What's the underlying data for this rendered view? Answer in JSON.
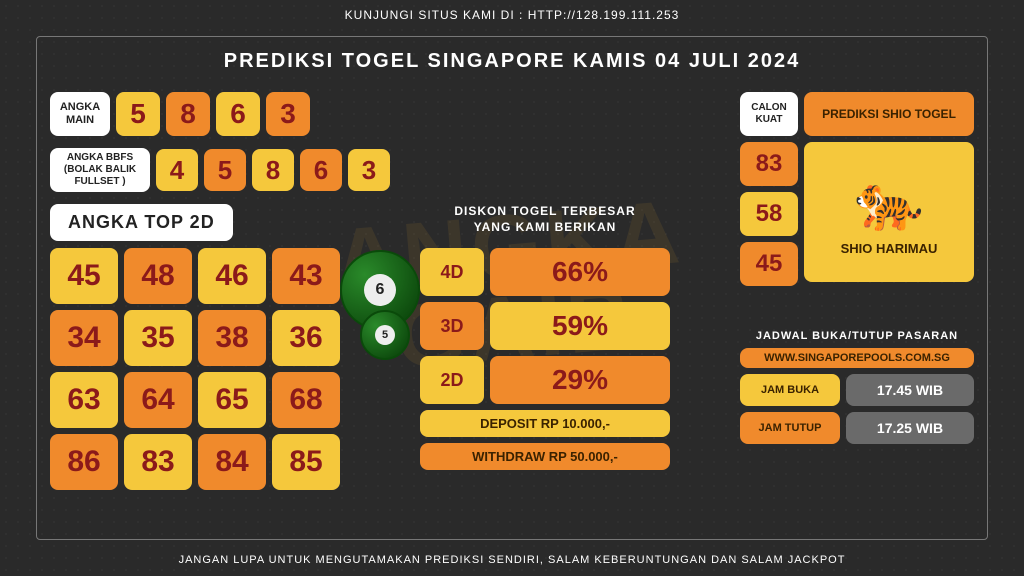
{
  "topbar": "KUNJUNGI SITUS KAMI DI : HTTP://128.199.111.253",
  "title": "PREDIKSI TOGEL SINGAPORE KAMIS 04 JULI 2024",
  "footer": "JANGAN LUPA UNTUK MENGUTAMAKAN PREDIKSI SENDIRI, SALAM KEBERUNTUNGAN DAN SALAM JACKPOT",
  "watermark": "ANGKA\nGAIB",
  "colors": {
    "yellow": "#f5c83c",
    "orange": "#f08a2c"
  },
  "angka_main": {
    "label": "ANGKA\nMAIN",
    "digits": [
      {
        "v": "5",
        "c": "yellow"
      },
      {
        "v": "8",
        "c": "orange"
      },
      {
        "v": "6",
        "c": "yellow"
      },
      {
        "v": "3",
        "c": "orange"
      }
    ]
  },
  "bbfs": {
    "label": "ANGKA BBFS\n(BOLAK BALIK\nFULLSET )",
    "digits": [
      {
        "v": "4",
        "c": "yellow"
      },
      {
        "v": "5",
        "c": "orange"
      },
      {
        "v": "8",
        "c": "yellow"
      },
      {
        "v": "6",
        "c": "orange"
      },
      {
        "v": "3",
        "c": "yellow"
      }
    ]
  },
  "top2d": {
    "label": "ANGKA TOP 2D",
    "cells": [
      {
        "v": "45",
        "c": "yellow"
      },
      {
        "v": "48",
        "c": "orange"
      },
      {
        "v": "46",
        "c": "yellow"
      },
      {
        "v": "43",
        "c": "orange"
      },
      {
        "v": "34",
        "c": "orange"
      },
      {
        "v": "35",
        "c": "yellow"
      },
      {
        "v": "38",
        "c": "orange"
      },
      {
        "v": "36",
        "c": "yellow"
      },
      {
        "v": "63",
        "c": "yellow"
      },
      {
        "v": "64",
        "c": "orange"
      },
      {
        "v": "65",
        "c": "yellow"
      },
      {
        "v": "68",
        "c": "orange"
      },
      {
        "v": "86",
        "c": "orange"
      },
      {
        "v": "83",
        "c": "yellow"
      },
      {
        "v": "84",
        "c": "orange"
      },
      {
        "v": "85",
        "c": "yellow"
      }
    ]
  },
  "diskon": {
    "label": "DISKON TOGEL TERBESAR\nYANG KAMI BERIKAN",
    "rows": [
      {
        "lab": "4D",
        "lab_c": "yellow",
        "val": "66%",
        "val_c": "orange"
      },
      {
        "lab": "3D",
        "lab_c": "orange",
        "val": "59%",
        "val_c": "yellow"
      },
      {
        "lab": "2D",
        "lab_c": "yellow",
        "val": "29%",
        "val_c": "orange"
      }
    ],
    "deposit": {
      "text": "DEPOSIT RP 10.000,-",
      "c": "yellow"
    },
    "withdraw": {
      "text": "WITHDRAW RP 50.000,-",
      "c": "orange"
    }
  },
  "calon": {
    "label": "CALON\nKUAT",
    "nums": [
      {
        "v": "83",
        "c": "orange"
      },
      {
        "v": "58",
        "c": "yellow"
      },
      {
        "v": "45",
        "c": "orange"
      }
    ],
    "pred_label": "PREDIKSI SHIO TOGEL",
    "shio": "SHIO HARIMAU",
    "tiger": "🐅"
  },
  "jadwal": {
    "header": "JADWAL BUKA/TUTUP PASARAN",
    "site": "WWW.SINGAPOREPOOLS.COM.SG",
    "rows": [
      {
        "lab": "JAM BUKA",
        "lab_c": "yellow",
        "val": "17.45 WIB"
      },
      {
        "lab": "JAM TUTUP",
        "lab_c": "orange",
        "val": "17.25 WIB"
      }
    ]
  },
  "balls": [
    "6",
    "5"
  ]
}
